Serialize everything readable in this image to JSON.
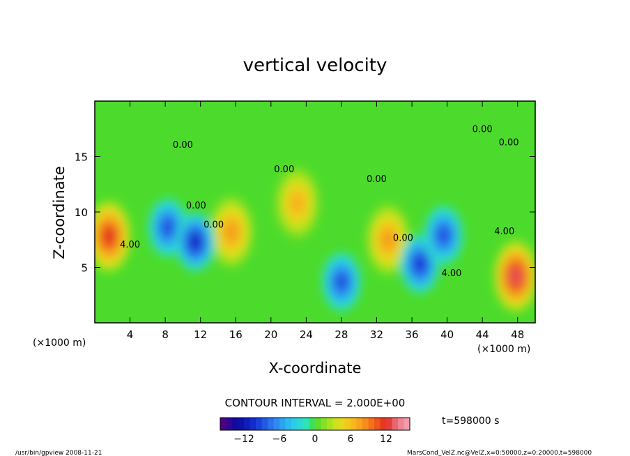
{
  "chart_data": {
    "type": "heatmap",
    "title": "vertical velocity",
    "xlabel": "X-coordinate",
    "ylabel": "Z-coordinate",
    "x_unit": "(×1000 m)",
    "y_unit": "(×1000 m)",
    "xlim": [
      0,
      50
    ],
    "ylim": [
      0,
      20
    ],
    "x_ticks": [
      4,
      8,
      12,
      16,
      20,
      24,
      28,
      32,
      36,
      40,
      44,
      48
    ],
    "y_ticks": [
      5,
      10,
      15
    ],
    "contour_interval_text": "CONTOUR INTERVAL = 2.000E+00",
    "contour_labels": [
      {
        "text": "0.00",
        "x": 10,
        "y": 15.8
      },
      {
        "text": "0.00",
        "x": 11.5,
        "y": 10.3
      },
      {
        "text": "0.00",
        "x": 13.5,
        "y": 8.6
      },
      {
        "text": "0.00",
        "x": 21.5,
        "y": 13.6
      },
      {
        "text": "0.00",
        "x": 32,
        "y": 12.7
      },
      {
        "text": "0.00",
        "x": 35,
        "y": 7.4
      },
      {
        "text": "0.00",
        "x": 44,
        "y": 17.2
      },
      {
        "text": "0.00",
        "x": 47,
        "y": 16
      },
      {
        "text": "4.00",
        "x": 4,
        "y": 6.8
      },
      {
        "text": "4.00",
        "x": 40.5,
        "y": 4.2
      },
      {
        "text": "4.00",
        "x": 46.5,
        "y": 8
      }
    ],
    "field_features": [
      {
        "kind": "updraft",
        "x": 1.6,
        "y": 7.8,
        "peak": 12
      },
      {
        "kind": "updraft",
        "x": 47.8,
        "y": 4.2,
        "peak": 13
      },
      {
        "kind": "updraft",
        "x": 15.5,
        "y": 8.2,
        "peak": 8
      },
      {
        "kind": "updraft",
        "x": 33.3,
        "y": 7.5,
        "peak": 8
      },
      {
        "kind": "updraft",
        "x": 23,
        "y": 10.8,
        "peak": 7
      },
      {
        "kind": "downdraft",
        "x": 8.3,
        "y": 8.6,
        "peak": -9
      },
      {
        "kind": "downdraft",
        "x": 11.4,
        "y": 7.3,
        "peak": -11
      },
      {
        "kind": "downdraft",
        "x": 28,
        "y": 3.7,
        "peak": -9
      },
      {
        "kind": "downdraft",
        "x": 36.9,
        "y": 5.3,
        "peak": -10
      },
      {
        "kind": "downdraft",
        "x": 39.6,
        "y": 7.9,
        "peak": -9
      }
    ],
    "colorbar": {
      "min": -16,
      "max": 16,
      "step": 1,
      "tick_labels": [
        "−12",
        "−6",
        "0",
        "6",
        "12"
      ],
      "tick_values": [
        -12,
        -6,
        0,
        6,
        12
      ]
    }
  },
  "info": {
    "time_label": "t=598000 s",
    "program_label": "/usr/bin/gpview  2008-11-21",
    "source_label": "MarsCond_VelZ.nc@VelZ,x=0:50000,z=0:20000,t=598000"
  }
}
